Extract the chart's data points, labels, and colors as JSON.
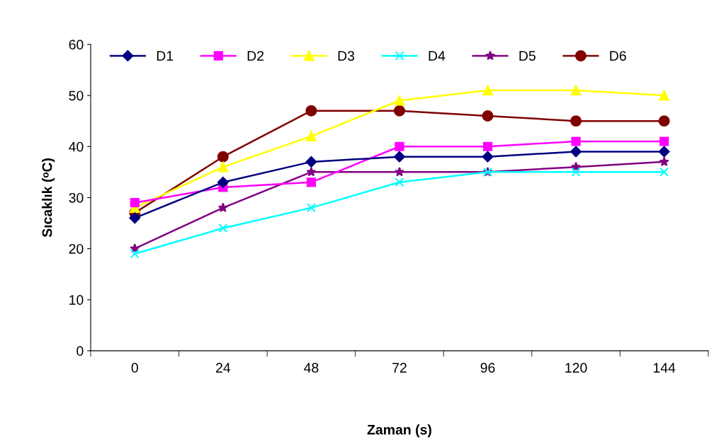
{
  "chart_data": {
    "type": "line",
    "xlabel": "Zaman (s)",
    "ylabel": "Sıcaklık (ᵒC)",
    "categories": [
      "0",
      "24",
      "48",
      "72",
      "96",
      "120",
      "144"
    ],
    "series": [
      {
        "name": "D1",
        "color": "#000080",
        "marker": "diamond",
        "values": [
          26,
          33,
          37,
          38,
          38,
          39,
          39
        ]
      },
      {
        "name": "D2",
        "color": "#ff00ff",
        "marker": "square",
        "values": [
          29,
          32,
          33,
          40,
          40,
          41,
          41
        ]
      },
      {
        "name": "D3",
        "color": "#ffff00",
        "marker": "triangle",
        "values": [
          28,
          36,
          42,
          49,
          51,
          51,
          50
        ]
      },
      {
        "name": "D4",
        "color": "#00ffff",
        "marker": "cross",
        "values": [
          19,
          24,
          28,
          33,
          35,
          35,
          35
        ]
      },
      {
        "name": "D5",
        "color": "#800080",
        "marker": "star",
        "values": [
          20,
          28,
          35,
          35,
          35,
          36,
          37
        ]
      },
      {
        "name": "D6",
        "color": "#800000",
        "marker": "circle",
        "values": [
          27,
          38,
          47,
          47,
          46,
          45,
          45
        ]
      }
    ],
    "ylim": [
      0,
      60
    ],
    "yticks": [
      0,
      10,
      20,
      30,
      40,
      50,
      60
    ],
    "grid": false,
    "legend": "top",
    "line_style": "solid"
  }
}
